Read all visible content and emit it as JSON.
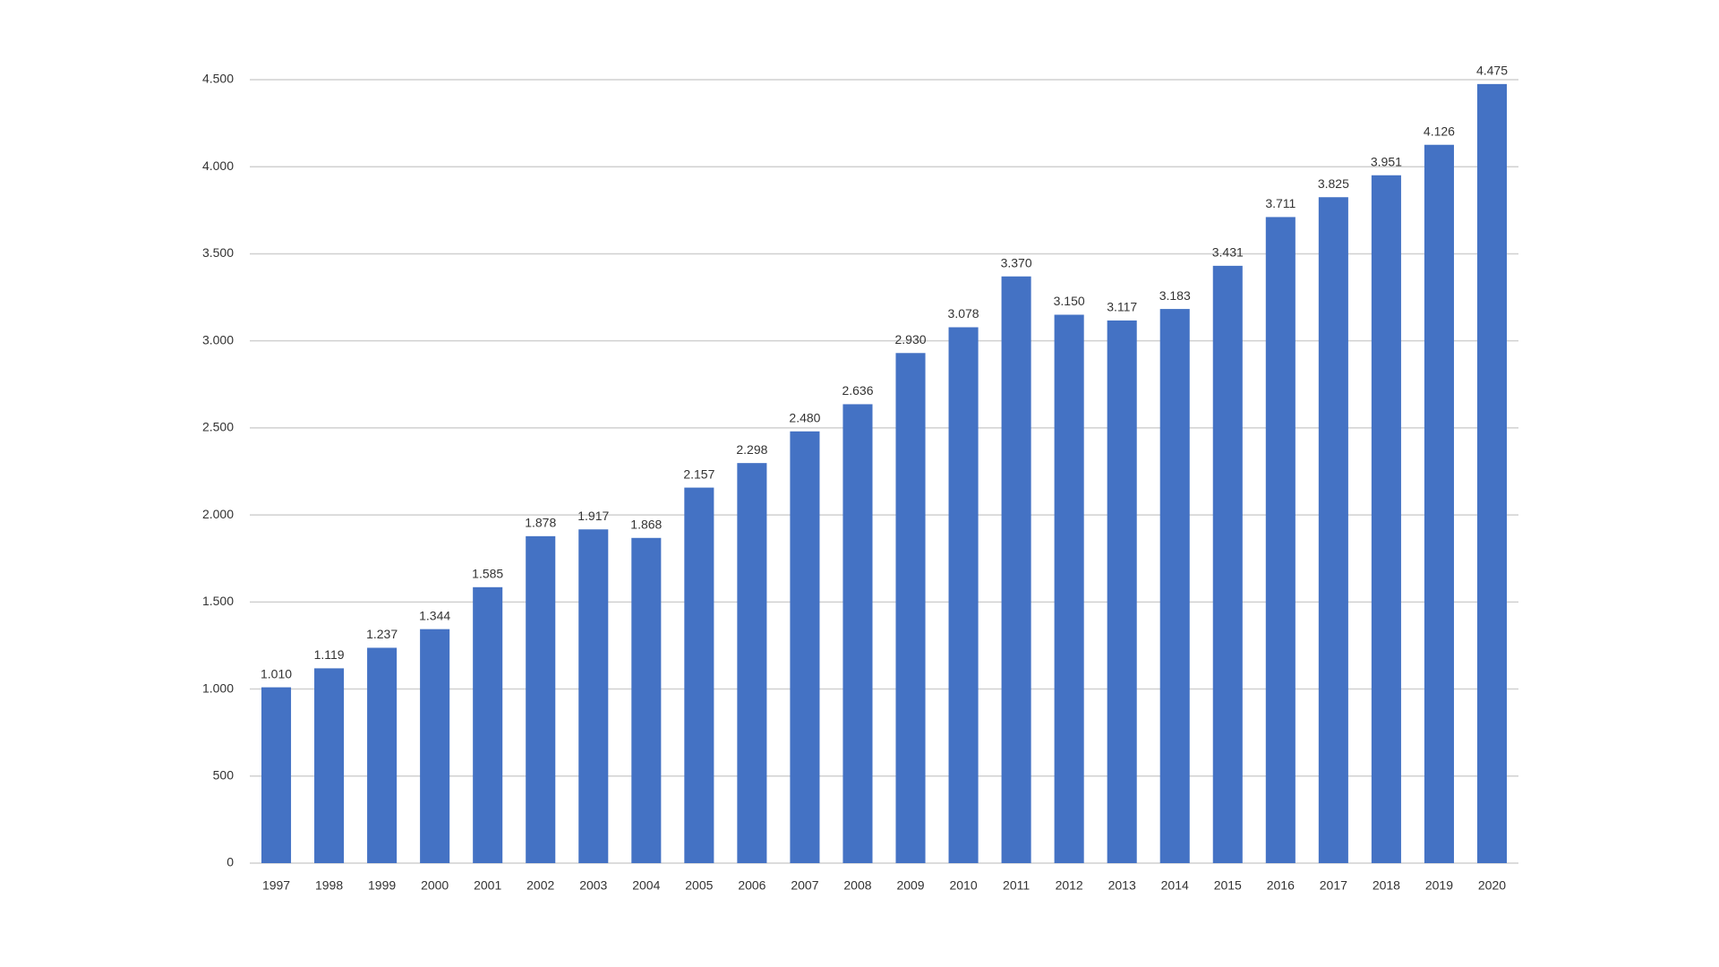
{
  "chart_data": {
    "type": "bar",
    "categories": [
      "1997",
      "1998",
      "1999",
      "2000",
      "2001",
      "2002",
      "2003",
      "2004",
      "2005",
      "2006",
      "2007",
      "2008",
      "2009",
      "2010",
      "2011",
      "2012",
      "2013",
      "2014",
      "2015",
      "2016",
      "2017",
      "2018",
      "2019",
      "2020"
    ],
    "values": [
      1010,
      1119,
      1237,
      1344,
      1585,
      1878,
      1917,
      1868,
      2157,
      2298,
      2480,
      2636,
      2930,
      3078,
      3370,
      3150,
      3117,
      3183,
      3431,
      3711,
      3825,
      3951,
      4126,
      4475
    ],
    "value_labels": [
      "1.010",
      "1.119",
      "1.237",
      "1.344",
      "1.585",
      "1.878",
      "1.917",
      "1.868",
      "2.157",
      "2.298",
      "2.480",
      "2.636",
      "2.930",
      "3.078",
      "3.370",
      "3.150",
      "3.117",
      "3.183",
      "3.431",
      "3.711",
      "3.825",
      "3.951",
      "4.126",
      "4.475"
    ],
    "color": "#4472c4",
    "ylim": [
      0,
      4500
    ],
    "yticks": [
      0,
      500,
      {
        "value": 1000,
        "label": "1.000"
      },
      {
        "value": 1500,
        "label": "1.500"
      },
      {
        "value": 2000,
        "label": "2.000"
      },
      {
        "value": 2500,
        "label": "2.500"
      },
      {
        "value": 3000,
        "label": "3.000"
      },
      {
        "value": 3500,
        "label": "3.500"
      },
      {
        "value": 4000,
        "label": "4.000"
      },
      {
        "value": 4500,
        "label": "4.500"
      }
    ],
    "grid": true
  }
}
